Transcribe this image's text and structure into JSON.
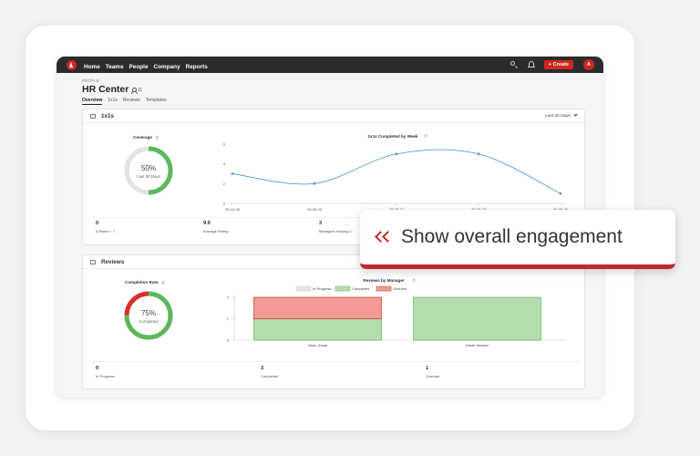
{
  "nav": {
    "items": [
      "Home",
      "Teams",
      "People",
      "Company",
      "Reports"
    ],
    "create_label": "+ Create",
    "avatar_initial": "A"
  },
  "page": {
    "breadcrumb": "PEOPLE",
    "title": "HR Center",
    "member_count": "11",
    "tabs": [
      "Overview",
      "1x1s",
      "Reviews",
      "Templates"
    ],
    "active_tab": "Overview"
  },
  "one_on_ones": {
    "title": "1x1s",
    "range": "Last 30 Days",
    "coverage": {
      "label": "Coverage",
      "percent": "50%",
      "sublabel": "Last 90 Days",
      "fraction": 0.5
    },
    "stats": [
      {
        "value": "0",
        "label": "# Rated < 7"
      },
      {
        "value": "9.9",
        "label": "Average Rating"
      },
      {
        "value": "3",
        "label": "Managers missing 1:"
      }
    ]
  },
  "reviews": {
    "title": "Reviews",
    "completion": {
      "label": "Completion Rate",
      "percent": "75%",
      "sublabel": "Completed",
      "fraction": 0.75
    },
    "stats": [
      {
        "value": "0",
        "label": "In Progress"
      },
      {
        "value": "3",
        "label": "Completed"
      },
      {
        "value": "1",
        "label": "Overdue"
      }
    ]
  },
  "callout": {
    "label": "Show overall engagement"
  },
  "colors": {
    "accent": "#d1261f",
    "green": "#5cb85c",
    "green_fill": "#b5dcae",
    "red": "#d9302b",
    "red_fill": "#f29c95",
    "line": "#5b9bd5",
    "topbar": "#2b2b2b"
  },
  "chart_data": [
    {
      "type": "line",
      "title": "1x1s Completed by Week",
      "x": [
        "25-04-28",
        "25-05-05",
        "25-05-12",
        "25-05-19",
        "25-05-26"
      ],
      "series": [
        {
          "values": [
            3,
            2,
            5,
            5,
            1
          ]
        }
      ],
      "ylim": [
        0,
        6
      ],
      "yticks": [
        0,
        2,
        4,
        6
      ],
      "grid": false
    },
    {
      "type": "bar",
      "title": "Reviews by Manager",
      "categories": [
        "Brian Dosal",
        "Derek Weaver"
      ],
      "stacked": true,
      "series": [
        {
          "name": "In Progress",
          "values": [
            0,
            0
          ],
          "color": "#e6e6e6"
        },
        {
          "name": "Completed",
          "values": [
            1,
            2
          ],
          "color": "#b5dcae"
        },
        {
          "name": "Overdue",
          "values": [
            1,
            0
          ],
          "color": "#f29c95"
        }
      ],
      "ylim": [
        0,
        2
      ],
      "yticks": [
        0,
        1,
        2
      ],
      "legend": "top-center"
    }
  ]
}
